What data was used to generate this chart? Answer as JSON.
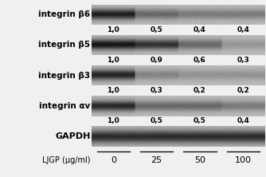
{
  "rows": [
    {
      "label": "integrin β6",
      "values": [
        "1,0",
        "0,5",
        "0,4",
        "0,4"
      ],
      "band_intensities": [
        0.85,
        0.45,
        0.35,
        0.35
      ]
    },
    {
      "label": "integrin β5",
      "values": [
        "1,0",
        "0,9",
        "0,6",
        "0,3"
      ],
      "band_intensities": [
        0.9,
        0.75,
        0.45,
        0.2
      ]
    },
    {
      "label": "integrin β3",
      "values": [
        "1,0",
        "0,3",
        "0,2",
        "0,2"
      ],
      "band_intensities": [
        0.82,
        0.3,
        0.22,
        0.22
      ]
    },
    {
      "label": "integrin αv",
      "values": [
        "1,0",
        "0,5",
        "0,5",
        "0,4"
      ],
      "band_intensities": [
        0.8,
        0.45,
        0.45,
        0.35
      ]
    },
    {
      "label": "GAPDH",
      "values": [],
      "band_intensities": [
        0.7,
        0.7,
        0.7,
        0.7
      ],
      "is_gapdh": true
    }
  ],
  "concentrations": [
    "0",
    "25",
    "50",
    "100"
  ],
  "xlabel": "LJGP (µg/ml)",
  "figure_bg": "#f0f0f0"
}
